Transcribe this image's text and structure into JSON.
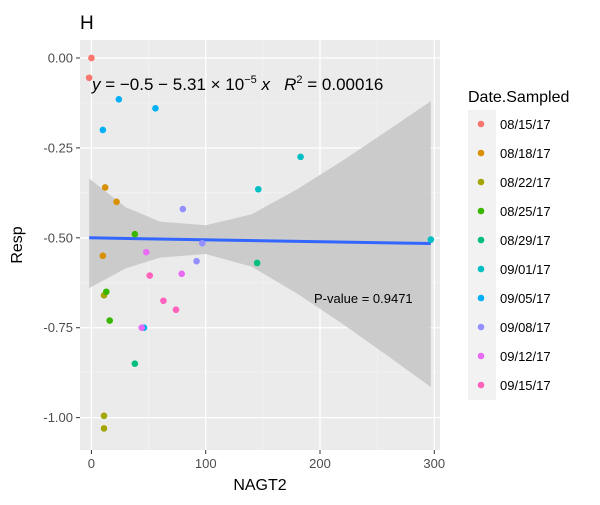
{
  "chart_data": {
    "type": "scatter",
    "title": "H",
    "xlabel": "NAGT2",
    "ylabel": "Resp",
    "xlim": [
      -10,
      305
    ],
    "ylim": [
      -1.09,
      0.05
    ],
    "x_ticks": [
      0,
      100,
      200,
      300
    ],
    "x_tick_labels": [
      "0",
      "100",
      "200",
      "300"
    ],
    "y_ticks": [
      0.0,
      -0.25,
      -0.5,
      -0.75,
      -1.0
    ],
    "y_tick_labels": [
      "0.00",
      "-0.25",
      "-0.50",
      "-0.75",
      "-1.00"
    ],
    "grid": true,
    "legend_title": "Date.Sampled",
    "legend_position": "right",
    "series": [
      {
        "name": "08/15/17",
        "color": "#F8766D",
        "points": [
          [
            0,
            0.0
          ],
          [
            -2,
            -0.055
          ]
        ]
      },
      {
        "name": "08/18/17",
        "color": "#D89000",
        "points": [
          [
            12,
            -0.36
          ],
          [
            22,
            -0.4
          ],
          [
            10,
            -0.55
          ]
        ]
      },
      {
        "name": "08/22/17",
        "color": "#A3A500",
        "points": [
          [
            11,
            -0.66
          ],
          [
            11,
            -0.995
          ],
          [
            11,
            -1.03
          ]
        ]
      },
      {
        "name": "08/25/17",
        "color": "#39B600",
        "points": [
          [
            13,
            -0.65
          ],
          [
            16,
            -0.73
          ],
          [
            38,
            -0.49
          ]
        ]
      },
      {
        "name": "08/29/17",
        "color": "#00BF7D",
        "points": [
          [
            38,
            -0.85
          ],
          [
            145,
            -0.57
          ]
        ]
      },
      {
        "name": "09/01/17",
        "color": "#00BFC4",
        "points": [
          [
            146,
            -0.365
          ],
          [
            183,
            -0.275
          ],
          [
            297,
            -0.505
          ]
        ]
      },
      {
        "name": "09/05/17",
        "color": "#00B0F6",
        "points": [
          [
            10,
            -0.2
          ],
          [
            24,
            -0.115
          ],
          [
            56,
            -0.14
          ],
          [
            46,
            -0.75
          ]
        ]
      },
      {
        "name": "09/08/17",
        "color": "#9590FF",
        "points": [
          [
            80,
            -0.42
          ],
          [
            92,
            -0.565
          ],
          [
            97,
            -0.515
          ]
        ]
      },
      {
        "name": "09/12/17",
        "color": "#E76BF3",
        "points": [
          [
            44,
            -0.75
          ],
          [
            48,
            -0.54
          ],
          [
            79,
            -0.6
          ]
        ]
      },
      {
        "name": "09/15/17",
        "color": "#FF62BC",
        "points": [
          [
            51,
            -0.605
          ],
          [
            63,
            -0.675
          ],
          [
            74,
            -0.7
          ]
        ]
      }
    ],
    "trend_line": {
      "x": [
        -2,
        297
      ],
      "y": [
        -0.5,
        -0.516
      ],
      "color": "#3366FF"
    },
    "confidence_band": {
      "upper": [
        [
          -2,
          -0.335
        ],
        [
          30,
          -0.415
        ],
        [
          60,
          -0.455
        ],
        [
          100,
          -0.465
        ],
        [
          140,
          -0.435
        ],
        [
          180,
          -0.365
        ],
        [
          220,
          -0.285
        ],
        [
          260,
          -0.2
        ],
        [
          297,
          -0.12
        ]
      ],
      "lower": [
        [
          -2,
          -0.64
        ],
        [
          30,
          -0.585
        ],
        [
          60,
          -0.555
        ],
        [
          100,
          -0.545
        ],
        [
          140,
          -0.58
        ],
        [
          180,
          -0.655
        ],
        [
          220,
          -0.74
        ],
        [
          260,
          -0.83
        ],
        [
          297,
          -0.915
        ]
      ],
      "fill": "#C8C8C8"
    },
    "annotations": {
      "equation": {
        "y_part": "y",
        "mid": " = −0.5 − 5.31 × 10",
        "exp": "−5",
        "x_part": "x",
        "r_part": "R",
        "r_exp": "2",
        "r_val": " = 0.00016"
      },
      "p_value": "P-value = 0.9471"
    }
  }
}
